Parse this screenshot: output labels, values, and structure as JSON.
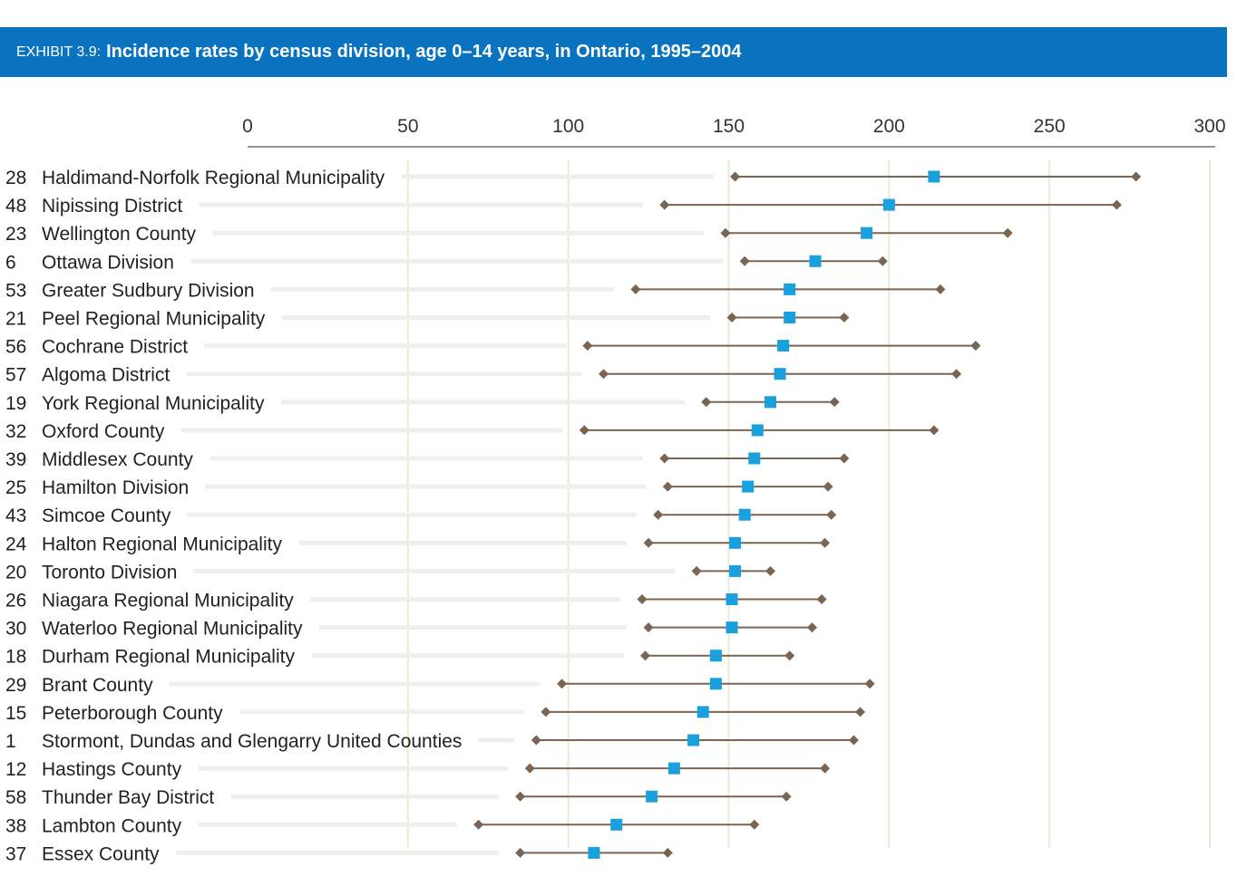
{
  "header": {
    "exhibit": "EXHIBIT 3.9:",
    "title": "Incidence rates by census division, age 0–14 years, in Ontario, 1995–2004"
  },
  "colors": {
    "banner": "#0a73bf",
    "estimate": "#1aa0dc",
    "interval": "#7a6552",
    "gridline": "#e3ecd5",
    "leader": "#eef0ee"
  },
  "chart_data": {
    "type": "dot-interval",
    "orientation": "horizontal",
    "title": "Incidence rates by census division, age 0–14 years, in Ontario, 1995–2004",
    "xlim": [
      0,
      300
    ],
    "xticks": [
      "0",
      "50",
      "100",
      "150",
      "200",
      "250",
      "300"
    ],
    "xtick_values": [
      0,
      50,
      100,
      150,
      200,
      250,
      300
    ],
    "grid": true,
    "rows": [
      {
        "id": "28",
        "name": "Haldimand-Norfolk Regional Municipality",
        "estimate": 214,
        "low": 152,
        "high": 277
      },
      {
        "id": "48",
        "name": "Nipissing District",
        "estimate": 200,
        "low": 130,
        "high": 271
      },
      {
        "id": "23",
        "name": "Wellington County",
        "estimate": 193,
        "low": 149,
        "high": 237
      },
      {
        "id": "6",
        "name": "Ottawa Division",
        "estimate": 177,
        "low": 155,
        "high": 198
      },
      {
        "id": "53",
        "name": "Greater Sudbury Division",
        "estimate": 169,
        "low": 121,
        "high": 216
      },
      {
        "id": "21",
        "name": "Peel Regional Municipality",
        "estimate": 169,
        "low": 151,
        "high": 186
      },
      {
        "id": "56",
        "name": "Cochrane District",
        "estimate": 167,
        "low": 106,
        "high": 227
      },
      {
        "id": "57",
        "name": "Algoma District",
        "estimate": 166,
        "low": 111,
        "high": 221
      },
      {
        "id": "19",
        "name": "York Regional Municipality",
        "estimate": 163,
        "low": 143,
        "high": 183
      },
      {
        "id": "32",
        "name": "Oxford County",
        "estimate": 159,
        "low": 105,
        "high": 214
      },
      {
        "id": "39",
        "name": "Middlesex County",
        "estimate": 158,
        "low": 130,
        "high": 186
      },
      {
        "id": "25",
        "name": "Hamilton Division",
        "estimate": 156,
        "low": 131,
        "high": 181
      },
      {
        "id": "43",
        "name": "Simcoe County",
        "estimate": 155,
        "low": 128,
        "high": 182
      },
      {
        "id": "24",
        "name": "Halton Regional Municipality",
        "estimate": 152,
        "low": 125,
        "high": 180
      },
      {
        "id": "20",
        "name": "Toronto Division",
        "estimate": 152,
        "low": 140,
        "high": 163
      },
      {
        "id": "26",
        "name": "Niagara Regional Municipality",
        "estimate": 151,
        "low": 123,
        "high": 179
      },
      {
        "id": "30",
        "name": "Waterloo Regional Municipality",
        "estimate": 151,
        "low": 125,
        "high": 176
      },
      {
        "id": "18",
        "name": "Durham Regional Municipality",
        "estimate": 146,
        "low": 124,
        "high": 169
      },
      {
        "id": "29",
        "name": "Brant County",
        "estimate": 146,
        "low": 98,
        "high": 194
      },
      {
        "id": "15",
        "name": "Peterborough County",
        "estimate": 142,
        "low": 93,
        "high": 191
      },
      {
        "id": "1",
        "name": "Stormont, Dundas and Glengarry United Counties",
        "estimate": 139,
        "low": 90,
        "high": 189
      },
      {
        "id": "12",
        "name": "Hastings County",
        "estimate": 133,
        "low": 88,
        "high": 180
      },
      {
        "id": "58",
        "name": "Thunder Bay District",
        "estimate": 126,
        "low": 85,
        "high": 168
      },
      {
        "id": "38",
        "name": "Lambton County",
        "estimate": 115,
        "low": 72,
        "high": 158
      },
      {
        "id": "37",
        "name": "Essex County",
        "estimate": 108,
        "low": 85,
        "high": 131
      }
    ]
  }
}
